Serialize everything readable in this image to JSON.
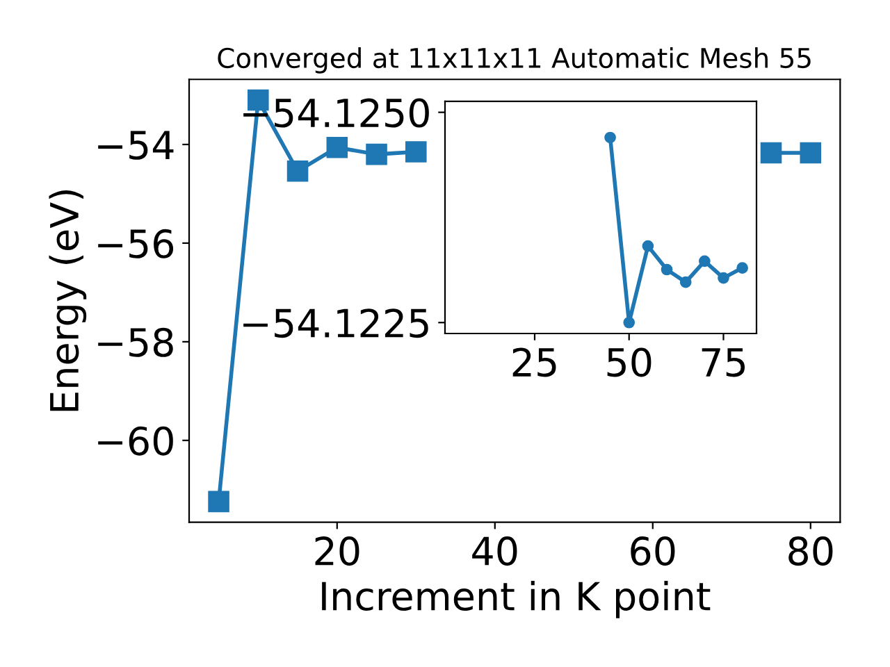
{
  "chart_data": [
    {
      "type": "line",
      "title": "Converged at 11x11x11 Automatic Mesh 55",
      "xlabel": "Increment in K point",
      "ylabel": "Energy (eV)",
      "x": [
        5,
        10,
        15,
        20,
        25,
        30,
        35,
        40,
        45,
        50,
        55,
        60,
        65,
        70,
        75,
        80
      ],
      "series": [
        {
          "color": "#1f77b4",
          "values": [
            -61.24,
            -53.1,
            -54.54,
            -54.06,
            -54.2,
            -54.15,
            null,
            null,
            null,
            null,
            null,
            null,
            null,
            null,
            -54.17,
            -54.17
          ]
        }
      ],
      "xlim": [
        1.25,
        83.75
      ],
      "xticks": [
        20,
        40,
        60,
        80
      ],
      "ylim": [
        -61.66,
        -52.68
      ],
      "yticks": [
        {
          "value": -60,
          "label": "−60"
        },
        {
          "value": -58,
          "label": "−58"
        },
        {
          "value": -56,
          "label": "−56"
        },
        {
          "value": -54,
          "label": "−54"
        }
      ],
      "marker": "square",
      "line_style": "solid",
      "grid": false,
      "legend": false
    },
    {
      "type": "line",
      "x": [
        45,
        50,
        55,
        60,
        65,
        70,
        75,
        80
      ],
      "series": [
        {
          "color": "#1f77b4",
          "values": [
            -54.1247,
            -54.1225,
            -54.12341,
            -54.12313,
            -54.12298,
            -54.12323,
            -54.12303,
            -54.12315
          ]
        }
      ],
      "xlim": [
        1.25,
        83.75
      ],
      "xticks": [
        25,
        50,
        75
      ],
      "ylim": [
        -54.12237,
        -54.12513
      ],
      "yticks": [
        {
          "value": -54.125,
          "label": "−54.1250"
        },
        {
          "value": -54.1225,
          "label": "−54.1225"
        }
      ],
      "marker": "circle",
      "line_style": "solid",
      "grid": false,
      "legend": false
    }
  ]
}
